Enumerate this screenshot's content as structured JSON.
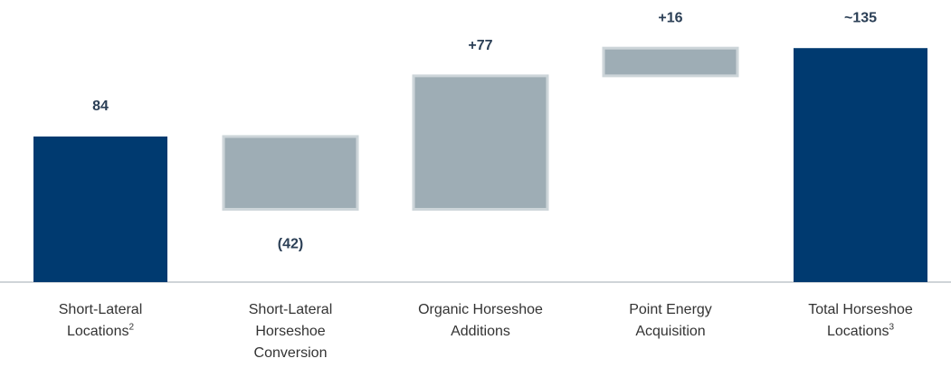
{
  "chart_data": {
    "type": "waterfall",
    "categories": [
      "Short-Lateral Locations",
      "Short-Lateral Horseshoe Conversion",
      "Organic Horseshoe Additions",
      "Point Energy Acquisition",
      "Total Horseshoe Locations"
    ],
    "category_notes": [
      "2",
      null,
      null,
      null,
      "3"
    ],
    "measure": [
      "absolute",
      "relative",
      "relative",
      "relative",
      "total"
    ],
    "values": [
      84,
      -42,
      77,
      16,
      135
    ],
    "value_labels": [
      "84",
      "(42)",
      "+77",
      "+16",
      "~135"
    ],
    "total_color": "#003a70",
    "change_color": "#9eadb5",
    "ylim": [
      0,
      140
    ]
  }
}
